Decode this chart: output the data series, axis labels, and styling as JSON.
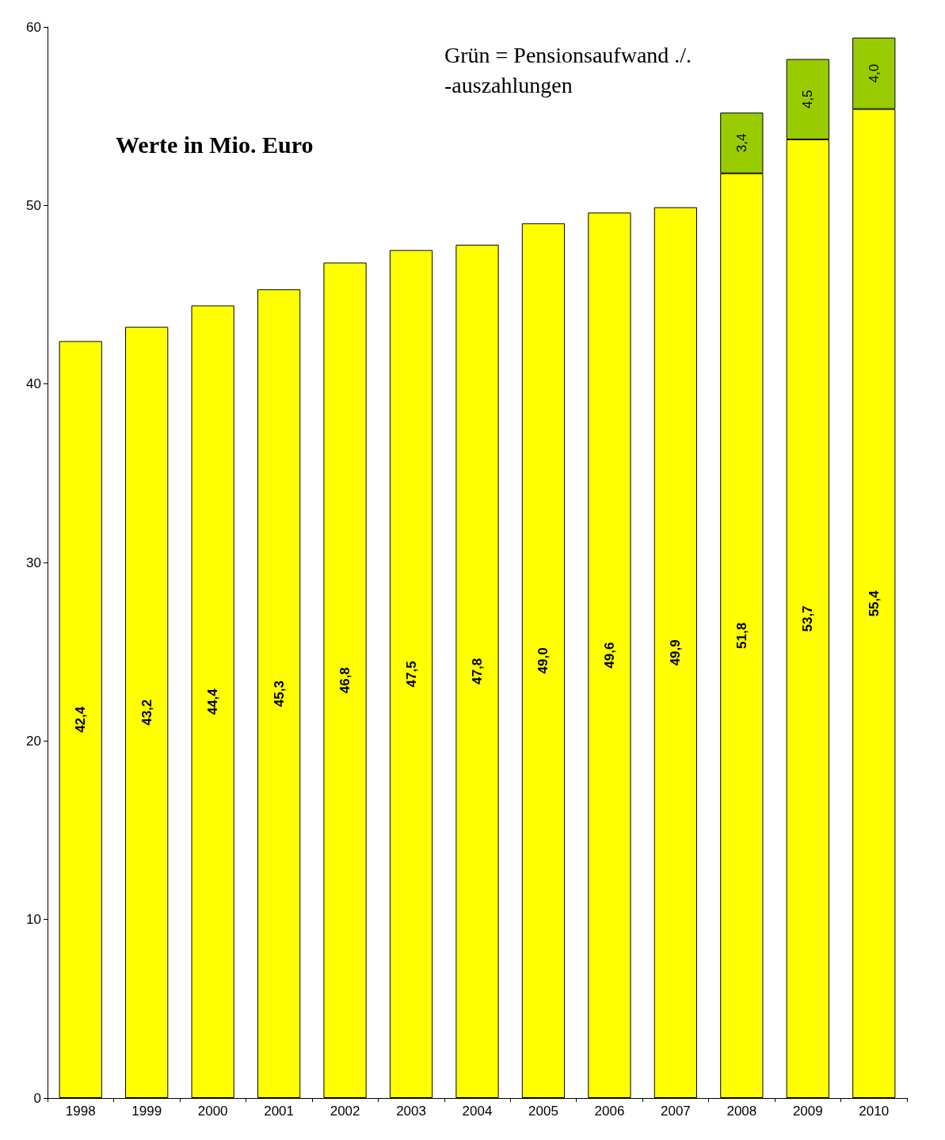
{
  "chart_data": {
    "type": "bar",
    "stacked": true,
    "categories": [
      "1998",
      "1999",
      "2000",
      "2001",
      "2002",
      "2003",
      "2004",
      "2005",
      "2006",
      "2007",
      "2008",
      "2009",
      "2010"
    ],
    "series": [
      {
        "color": "#ffff00",
        "values": [
          42.4,
          43.2,
          44.4,
          45.3,
          46.8,
          47.5,
          47.8,
          49.0,
          49.6,
          49.9,
          51.8,
          53.7,
          55.4
        ],
        "value_labels": [
          "42,4",
          "43,2",
          "44,4",
          "45,3",
          "46,8",
          "47,5",
          "47,8",
          "49,0",
          "49,6",
          "49,9",
          "51,8",
          "53,7",
          "55,4"
        ]
      },
      {
        "color": "#99cc00",
        "values": [
          null,
          null,
          null,
          null,
          null,
          null,
          null,
          null,
          null,
          null,
          3.4,
          4.5,
          4.0
        ],
        "value_labels": [
          null,
          null,
          null,
          null,
          null,
          null,
          null,
          null,
          null,
          null,
          "3,4",
          "4,5",
          "4,0"
        ]
      }
    ],
    "ylim": [
      0,
      60
    ],
    "yticks": [
      0,
      10,
      20,
      30,
      40,
      50,
      60
    ],
    "grid": false,
    "annotations": [
      "Grün = Pensionsaufwand ./. -auszahlungen",
      "Werte in Mio. Euro"
    ]
  }
}
